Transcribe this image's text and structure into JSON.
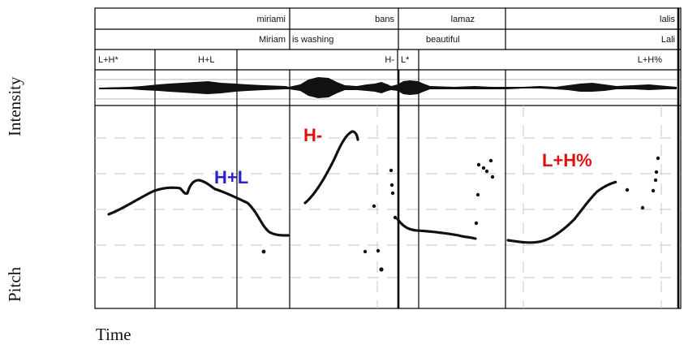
{
  "side_labels": {
    "intensity": "Intensity",
    "pitch": "Pitch",
    "time": "Time"
  },
  "tiers": {
    "words": [
      "miriami",
      "bans",
      "lamaz",
      "lalis"
    ],
    "gloss": [
      "Miriam",
      "is washing",
      "beautiful",
      "Lali"
    ],
    "tones": [
      "L+H*",
      "H+L",
      "H-",
      "L*",
      "L+H%"
    ]
  },
  "annotations": [
    {
      "text": "H+L",
      "color": "#2b22c9"
    },
    {
      "text": "H-",
      "color": "#e01010"
    },
    {
      "text": "L+H%",
      "color": "#e01010"
    }
  ],
  "colors": {
    "frame": "#000000",
    "grid": "#c8c8c8",
    "trace": "#111111"
  }
}
